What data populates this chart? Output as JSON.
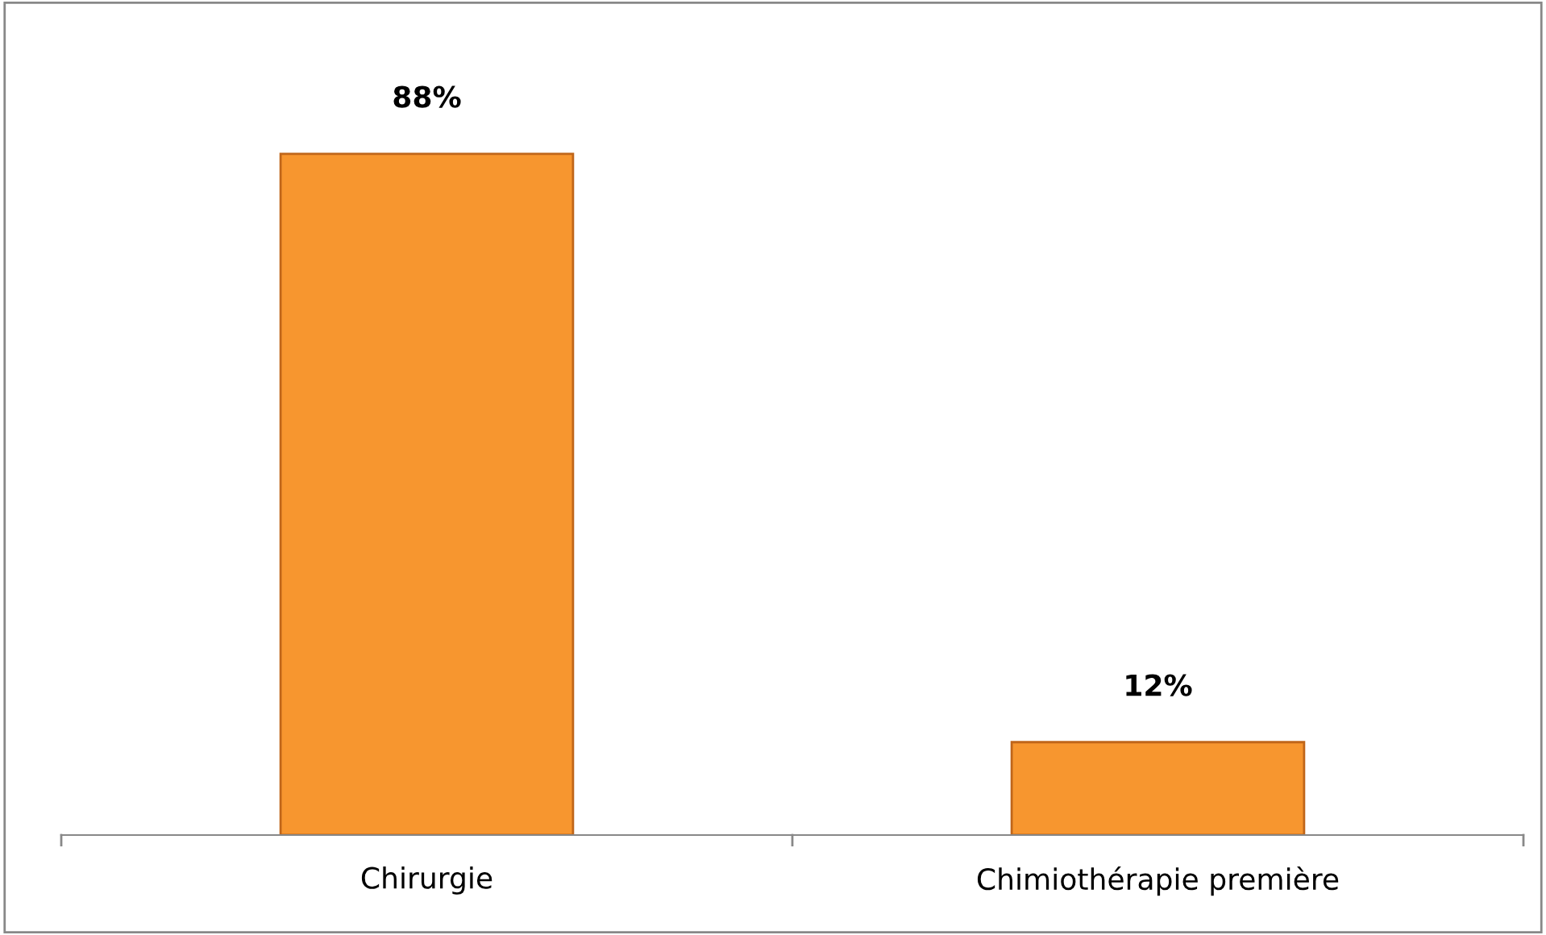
{
  "chart_data": {
    "type": "bar",
    "categories": [
      "Chirurgie",
      "Chimiothérapie première"
    ],
    "values": [
      88,
      12
    ],
    "value_labels": [
      "88%",
      "12%"
    ],
    "color": "#f7962f",
    "grid": false,
    "legend": false
  }
}
